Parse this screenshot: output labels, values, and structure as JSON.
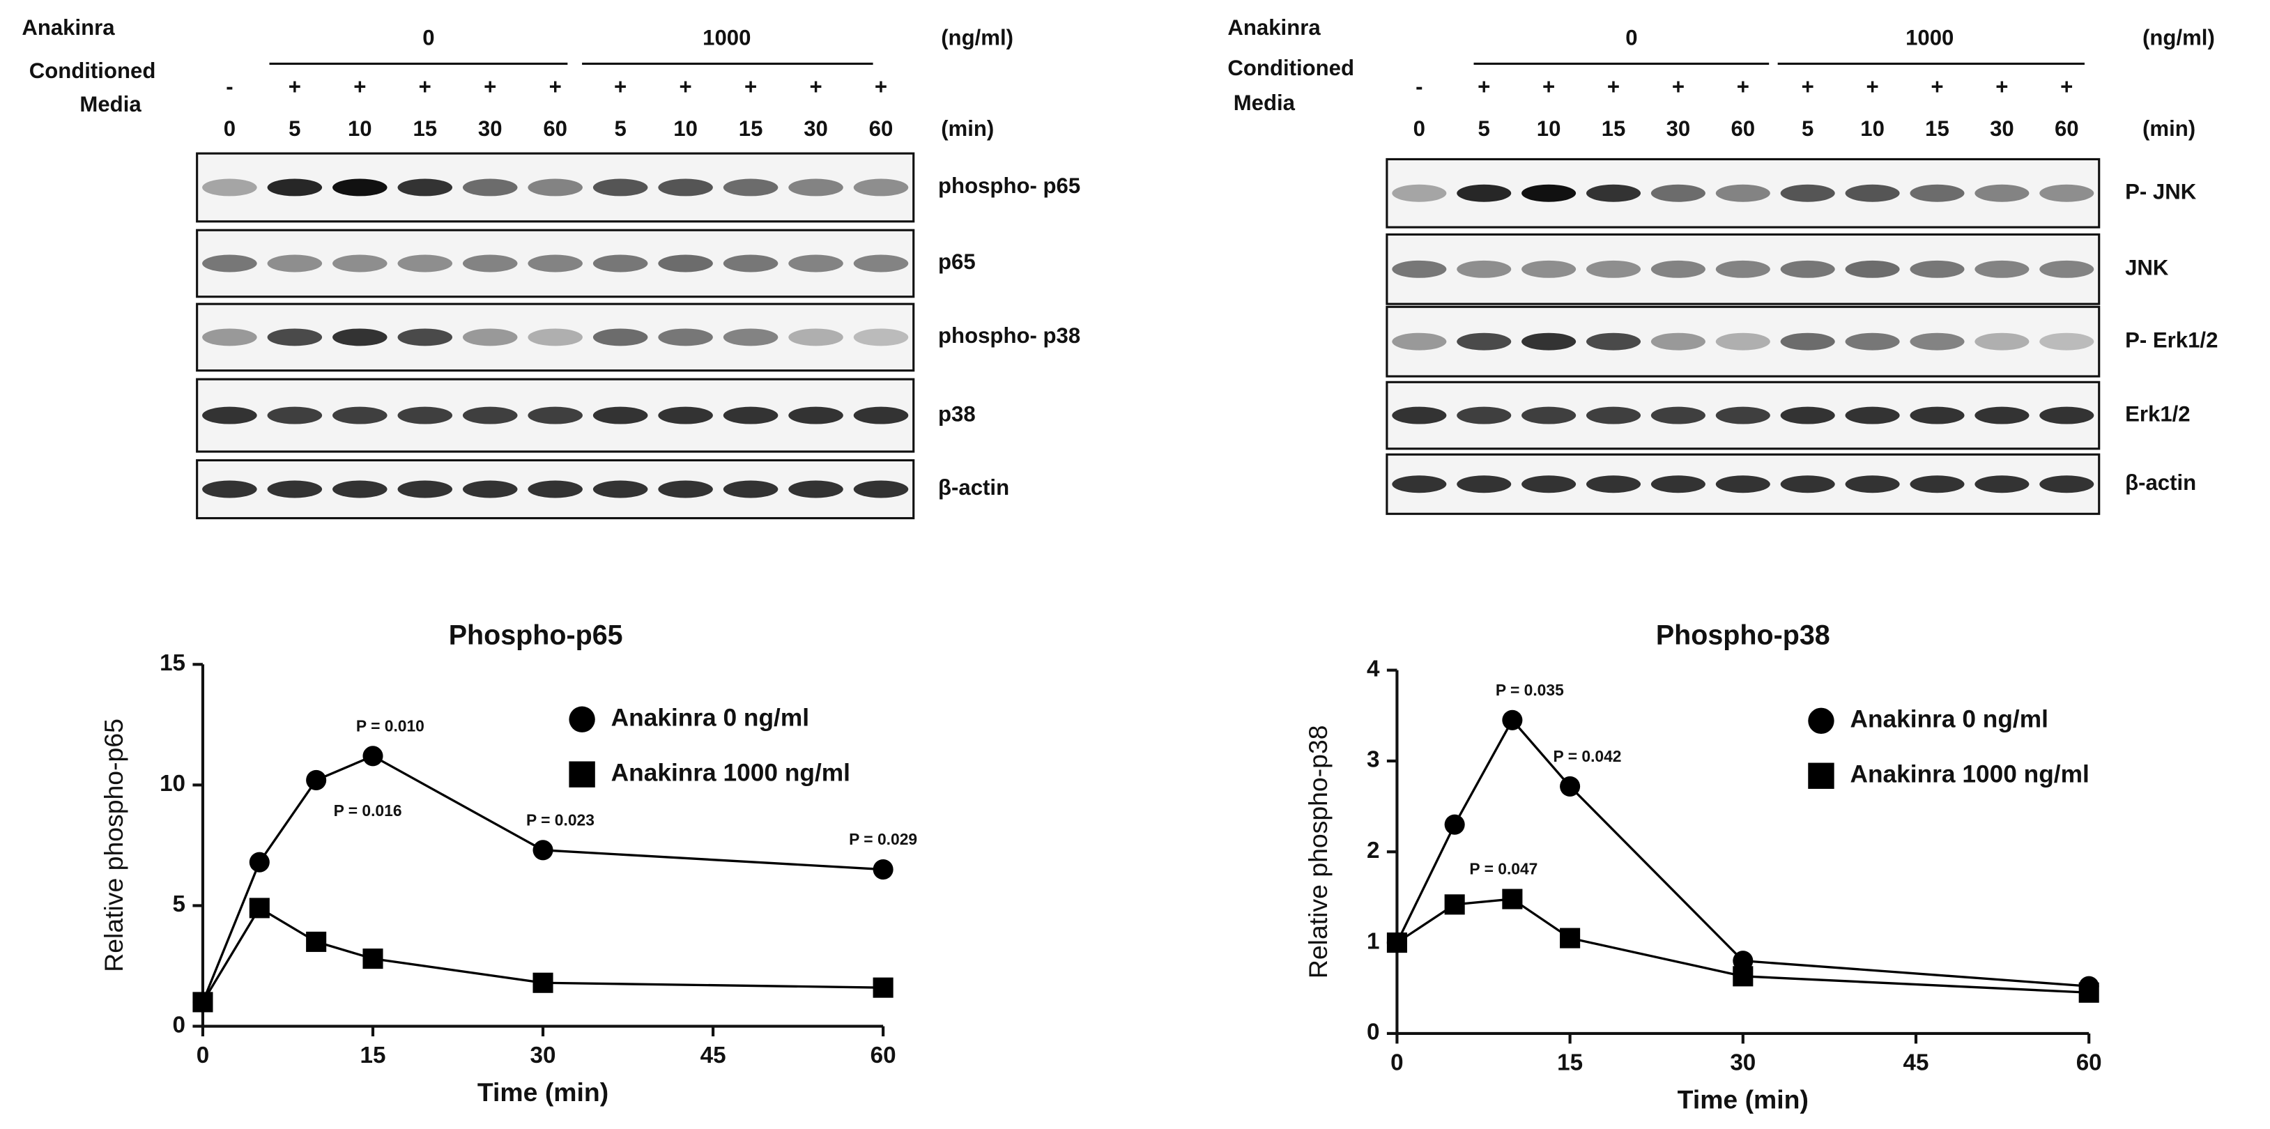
{
  "blots": [
    {
      "anakinra": "Anakinra",
      "groups": [
        "0",
        "1000"
      ],
      "unit": "(ng/ml)",
      "media": [
        "Conditioned",
        "Media"
      ],
      "signs": [
        "-",
        "+",
        "+",
        "+",
        "+",
        "+",
        "+",
        "+",
        "+",
        "+",
        "+"
      ],
      "times": [
        "0",
        "5",
        "10",
        "15",
        "30",
        "60",
        "5",
        "10",
        "15",
        "30",
        "60"
      ],
      "time_unit": "(min)",
      "rows": [
        "phospho- p65",
        "p65",
        "phospho- p38",
        "p38",
        "β-actin"
      ]
    },
    {
      "anakinra": "Anakinra",
      "groups": [
        "0",
        "1000"
      ],
      "unit": "(ng/ml)",
      "media": [
        "Conditioned",
        "Media"
      ],
      "signs": [
        "-",
        "+",
        "+",
        "+",
        "+",
        "+",
        "+",
        "+",
        "+",
        "+",
        "+"
      ],
      "times": [
        "0",
        "5",
        "10",
        "15",
        "30",
        "60",
        "5",
        "10",
        "15",
        "30",
        "60"
      ],
      "time_unit": "(min)",
      "rows": [
        "P- JNK",
        "JNK",
        "P- Erk1/2",
        "Erk1/2",
        "β-actin"
      ]
    }
  ],
  "chart_data": [
    {
      "type": "line",
      "title": "Phospho-p65",
      "x_label": "Time (min)",
      "y_label": "Relative phospho-p65",
      "x": [
        0,
        5,
        10,
        15,
        30,
        60
      ],
      "xlim": [
        0,
        60
      ],
      "xticks": [
        0,
        15,
        30,
        45,
        60
      ],
      "ylim": [
        0,
        15
      ],
      "yticks": [
        0,
        5,
        10,
        15
      ],
      "legend": "upper right",
      "series": [
        {
          "name": "Anakinra 0 ng/ml",
          "color": "#000000",
          "marker": "circle",
          "values": [
            1,
            6.8,
            10.2,
            11.2,
            7.3,
            6.5
          ],
          "p_labels": [
            null,
            null,
            "P = 0.016",
            "P = 0.010",
            "P = 0.023",
            "P = 0.029"
          ]
        },
        {
          "name": "Anakinra 1000 ng/ml",
          "color": "#000000",
          "marker": "square",
          "values": [
            1,
            4.9,
            3.5,
            2.8,
            1.8,
            1.6
          ]
        }
      ]
    },
    {
      "type": "line",
      "title": "Phospho-p38",
      "x_label": "Time (min)",
      "y_label": "Relative phospho-p38",
      "x": [
        0,
        5,
        10,
        15,
        30,
        60
      ],
      "xlim": [
        0,
        60
      ],
      "xticks": [
        0,
        15,
        30,
        45,
        60
      ],
      "ylim": [
        0,
        4
      ],
      "yticks": [
        0,
        1,
        2,
        3,
        4
      ],
      "legend": "upper right",
      "series": [
        {
          "name": "Anakinra 0 ng/ml",
          "color": "#000000",
          "marker": "circle",
          "values": [
            1,
            2.3,
            3.45,
            2.72,
            0.8,
            0.52
          ],
          "p_labels": [
            null,
            null,
            "P = 0.035",
            "P = 0.042",
            null,
            null
          ]
        },
        {
          "name": "Anakinra 1000 ng/ml",
          "color": "#000000",
          "marker": "square",
          "values": [
            1,
            1.42,
            1.48,
            1.05,
            0.63,
            0.45
          ],
          "p_labels": [
            null,
            null,
            "P = 0.047",
            null,
            null,
            null
          ]
        }
      ]
    }
  ]
}
